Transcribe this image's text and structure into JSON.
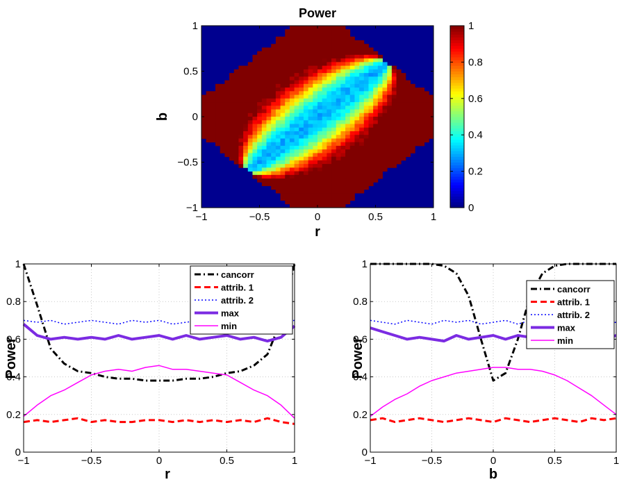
{
  "chart_data": [
    {
      "type": "heatmap",
      "title": "Power",
      "xlabel": "r",
      "ylabel": "b",
      "xlim": [
        -1,
        1
      ],
      "ylim": [
        -1,
        1
      ],
      "x_ticks": [
        "−1",
        "−0.5",
        "0",
        "0.5",
        "1"
      ],
      "y_ticks": [
        "−1",
        "−0.5",
        "0",
        "0.5",
        "1"
      ],
      "colorbar": {
        "min": 0,
        "max": 1,
        "ticks": [
          "0",
          "0.2",
          "0.4",
          "0.6",
          "0.8",
          "1"
        ],
        "colormap": "jet"
      },
      "grid_cells": 50,
      "region": "diamond with corners (-1,-0.2), (0.2,1), (1,0.2), (-0.2,-1); value ~1 near edges, ~0.3 along the center ridge, 0 outside",
      "background_color": "#00008f"
    },
    {
      "type": "line",
      "xlabel": "r",
      "ylabel": "Power",
      "xlim": [
        -1,
        1
      ],
      "ylim": [
        0,
        1
      ],
      "x_ticks": [
        "−1",
        "−0.5",
        "0",
        "0.5",
        "1"
      ],
      "y_ticks": [
        "0",
        "0.2",
        "0.4",
        "0.6",
        "0.8",
        "1"
      ],
      "grid": true,
      "legend": "top-right",
      "x": [
        -1.0,
        -0.9,
        -0.8,
        -0.7,
        -0.6,
        -0.5,
        -0.4,
        -0.3,
        -0.2,
        -0.1,
        0.0,
        0.1,
        0.2,
        0.3,
        0.4,
        0.5,
        0.6,
        0.7,
        0.8,
        0.9,
        1.0
      ],
      "series": [
        {
          "name": "cancorr",
          "color": "#000000",
          "style": "dashdot",
          "width": 3,
          "values": [
            1.0,
            0.78,
            0.55,
            0.47,
            0.43,
            0.42,
            0.4,
            0.39,
            0.39,
            0.38,
            0.38,
            0.38,
            0.39,
            0.39,
            0.4,
            0.42,
            0.43,
            0.46,
            0.52,
            0.7,
            1.0
          ]
        },
        {
          "name": "attrib. 1",
          "color": "#ff0000",
          "style": "dashed",
          "width": 3,
          "values": [
            0.16,
            0.17,
            0.16,
            0.17,
            0.18,
            0.16,
            0.17,
            0.16,
            0.16,
            0.17,
            0.17,
            0.16,
            0.17,
            0.16,
            0.17,
            0.16,
            0.17,
            0.16,
            0.18,
            0.16,
            0.15
          ]
        },
        {
          "name": "attrib. 2",
          "color": "#0000ff",
          "style": "dotted",
          "width": 1.5,
          "values": [
            0.7,
            0.69,
            0.7,
            0.68,
            0.69,
            0.7,
            0.69,
            0.68,
            0.7,
            0.69,
            0.7,
            0.68,
            0.69,
            0.7,
            0.68,
            0.7,
            0.69,
            0.68,
            0.7,
            0.69,
            0.7
          ]
        },
        {
          "name": "max",
          "color": "#7b2be2",
          "style": "solid",
          "width": 4,
          "values": [
            0.68,
            0.62,
            0.6,
            0.61,
            0.6,
            0.61,
            0.6,
            0.62,
            0.6,
            0.61,
            0.62,
            0.6,
            0.62,
            0.6,
            0.61,
            0.62,
            0.6,
            0.61,
            0.59,
            0.61,
            0.67
          ]
        },
        {
          "name": "min",
          "color": "#ff00ff",
          "style": "solid",
          "width": 1.5,
          "values": [
            0.19,
            0.25,
            0.3,
            0.33,
            0.37,
            0.41,
            0.43,
            0.44,
            0.43,
            0.45,
            0.46,
            0.44,
            0.44,
            0.43,
            0.42,
            0.41,
            0.37,
            0.33,
            0.3,
            0.25,
            0.18
          ]
        }
      ]
    },
    {
      "type": "line",
      "xlabel": "b",
      "ylabel": "Power",
      "xlim": [
        -1,
        1
      ],
      "ylim": [
        0,
        1
      ],
      "x_ticks": [
        "−1",
        "−0.5",
        "0",
        "0.5",
        "1"
      ],
      "y_ticks": [
        "0",
        "0.2",
        "0.4",
        "0.6",
        "0.8",
        "1"
      ],
      "grid": true,
      "legend": "right",
      "x": [
        -1.0,
        -0.9,
        -0.8,
        -0.7,
        -0.6,
        -0.5,
        -0.4,
        -0.3,
        -0.2,
        -0.1,
        0.0,
        0.1,
        0.2,
        0.3,
        0.4,
        0.5,
        0.6,
        0.7,
        0.8,
        0.9,
        1.0
      ],
      "series": [
        {
          "name": "cancorr",
          "color": "#000000",
          "style": "dashdot",
          "width": 3,
          "values": [
            1.0,
            1.0,
            1.0,
            1.0,
            1.0,
            1.0,
            0.99,
            0.95,
            0.83,
            0.6,
            0.38,
            0.42,
            0.6,
            0.83,
            0.95,
            0.99,
            1.0,
            1.0,
            1.0,
            1.0,
            1.0
          ]
        },
        {
          "name": "attrib. 1",
          "color": "#ff0000",
          "style": "dashed",
          "width": 3,
          "values": [
            0.17,
            0.18,
            0.16,
            0.17,
            0.18,
            0.17,
            0.16,
            0.17,
            0.18,
            0.17,
            0.16,
            0.18,
            0.17,
            0.16,
            0.17,
            0.18,
            0.17,
            0.16,
            0.18,
            0.17,
            0.18
          ]
        },
        {
          "name": "attrib. 2",
          "color": "#0000ff",
          "style": "dotted",
          "width": 1.5,
          "values": [
            0.7,
            0.69,
            0.68,
            0.7,
            0.69,
            0.68,
            0.7,
            0.69,
            0.7,
            0.68,
            0.69,
            0.7,
            0.68,
            0.7,
            0.69,
            0.7,
            0.68,
            0.69,
            0.7,
            0.68,
            0.69
          ]
        },
        {
          "name": "max",
          "color": "#7b2be2",
          "style": "solid",
          "width": 4,
          "values": [
            0.66,
            0.64,
            0.62,
            0.6,
            0.61,
            0.6,
            0.59,
            0.62,
            0.6,
            0.61,
            0.62,
            0.6,
            0.62,
            0.61,
            0.6,
            0.62,
            0.6,
            0.61,
            0.59,
            0.6,
            0.62
          ]
        },
        {
          "name": "min",
          "color": "#ff00ff",
          "style": "solid",
          "width": 1.5,
          "values": [
            0.19,
            0.24,
            0.28,
            0.31,
            0.35,
            0.38,
            0.4,
            0.42,
            0.43,
            0.44,
            0.45,
            0.45,
            0.44,
            0.44,
            0.43,
            0.41,
            0.38,
            0.34,
            0.3,
            0.25,
            0.2
          ]
        }
      ]
    }
  ]
}
